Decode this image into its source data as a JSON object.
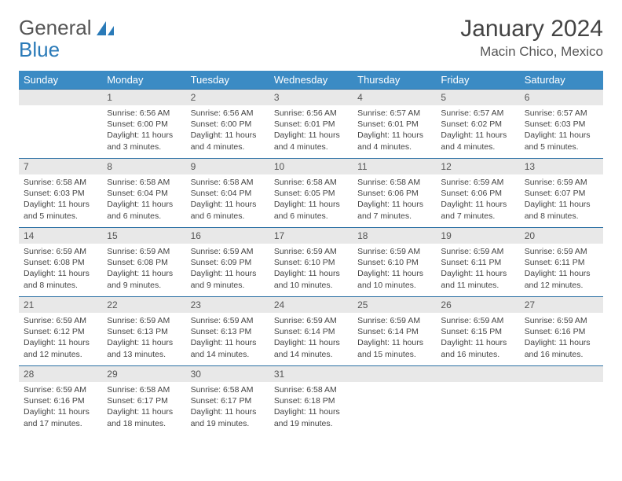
{
  "logo": {
    "part1": "General",
    "part2": "Blue"
  },
  "title": "January 2024",
  "location": "Macin Chico, Mexico",
  "colors": {
    "header_bg": "#3b8bc4",
    "header_text": "#ffffff",
    "daynum_bg": "#e8e8e8",
    "row_border": "#2a6fa3",
    "logo_blue": "#2a7ab8",
    "text": "#444444"
  },
  "weekdays": [
    "Sunday",
    "Monday",
    "Tuesday",
    "Wednesday",
    "Thursday",
    "Friday",
    "Saturday"
  ],
  "weeks": [
    [
      null,
      {
        "n": "1",
        "sr": "6:56 AM",
        "ss": "6:00 PM",
        "d": "11 hours and 3 minutes."
      },
      {
        "n": "2",
        "sr": "6:56 AM",
        "ss": "6:00 PM",
        "d": "11 hours and 4 minutes."
      },
      {
        "n": "3",
        "sr": "6:56 AM",
        "ss": "6:01 PM",
        "d": "11 hours and 4 minutes."
      },
      {
        "n": "4",
        "sr": "6:57 AM",
        "ss": "6:01 PM",
        "d": "11 hours and 4 minutes."
      },
      {
        "n": "5",
        "sr": "6:57 AM",
        "ss": "6:02 PM",
        "d": "11 hours and 4 minutes."
      },
      {
        "n": "6",
        "sr": "6:57 AM",
        "ss": "6:03 PM",
        "d": "11 hours and 5 minutes."
      }
    ],
    [
      {
        "n": "7",
        "sr": "6:58 AM",
        "ss": "6:03 PM",
        "d": "11 hours and 5 minutes."
      },
      {
        "n": "8",
        "sr": "6:58 AM",
        "ss": "6:04 PM",
        "d": "11 hours and 6 minutes."
      },
      {
        "n": "9",
        "sr": "6:58 AM",
        "ss": "6:04 PM",
        "d": "11 hours and 6 minutes."
      },
      {
        "n": "10",
        "sr": "6:58 AM",
        "ss": "6:05 PM",
        "d": "11 hours and 6 minutes."
      },
      {
        "n": "11",
        "sr": "6:58 AM",
        "ss": "6:06 PM",
        "d": "11 hours and 7 minutes."
      },
      {
        "n": "12",
        "sr": "6:59 AM",
        "ss": "6:06 PM",
        "d": "11 hours and 7 minutes."
      },
      {
        "n": "13",
        "sr": "6:59 AM",
        "ss": "6:07 PM",
        "d": "11 hours and 8 minutes."
      }
    ],
    [
      {
        "n": "14",
        "sr": "6:59 AM",
        "ss": "6:08 PM",
        "d": "11 hours and 8 minutes."
      },
      {
        "n": "15",
        "sr": "6:59 AM",
        "ss": "6:08 PM",
        "d": "11 hours and 9 minutes."
      },
      {
        "n": "16",
        "sr": "6:59 AM",
        "ss": "6:09 PM",
        "d": "11 hours and 9 minutes."
      },
      {
        "n": "17",
        "sr": "6:59 AM",
        "ss": "6:10 PM",
        "d": "11 hours and 10 minutes."
      },
      {
        "n": "18",
        "sr": "6:59 AM",
        "ss": "6:10 PM",
        "d": "11 hours and 10 minutes."
      },
      {
        "n": "19",
        "sr": "6:59 AM",
        "ss": "6:11 PM",
        "d": "11 hours and 11 minutes."
      },
      {
        "n": "20",
        "sr": "6:59 AM",
        "ss": "6:11 PM",
        "d": "11 hours and 12 minutes."
      }
    ],
    [
      {
        "n": "21",
        "sr": "6:59 AM",
        "ss": "6:12 PM",
        "d": "11 hours and 12 minutes."
      },
      {
        "n": "22",
        "sr": "6:59 AM",
        "ss": "6:13 PM",
        "d": "11 hours and 13 minutes."
      },
      {
        "n": "23",
        "sr": "6:59 AM",
        "ss": "6:13 PM",
        "d": "11 hours and 14 minutes."
      },
      {
        "n": "24",
        "sr": "6:59 AM",
        "ss": "6:14 PM",
        "d": "11 hours and 14 minutes."
      },
      {
        "n": "25",
        "sr": "6:59 AM",
        "ss": "6:14 PM",
        "d": "11 hours and 15 minutes."
      },
      {
        "n": "26",
        "sr": "6:59 AM",
        "ss": "6:15 PM",
        "d": "11 hours and 16 minutes."
      },
      {
        "n": "27",
        "sr": "6:59 AM",
        "ss": "6:16 PM",
        "d": "11 hours and 16 minutes."
      }
    ],
    [
      {
        "n": "28",
        "sr": "6:59 AM",
        "ss": "6:16 PM",
        "d": "11 hours and 17 minutes."
      },
      {
        "n": "29",
        "sr": "6:58 AM",
        "ss": "6:17 PM",
        "d": "11 hours and 18 minutes."
      },
      {
        "n": "30",
        "sr": "6:58 AM",
        "ss": "6:17 PM",
        "d": "11 hours and 19 minutes."
      },
      {
        "n": "31",
        "sr": "6:58 AM",
        "ss": "6:18 PM",
        "d": "11 hours and 19 minutes."
      },
      null,
      null,
      null
    ]
  ],
  "labels": {
    "sunrise": "Sunrise:",
    "sunset": "Sunset:",
    "daylight": "Daylight:"
  }
}
